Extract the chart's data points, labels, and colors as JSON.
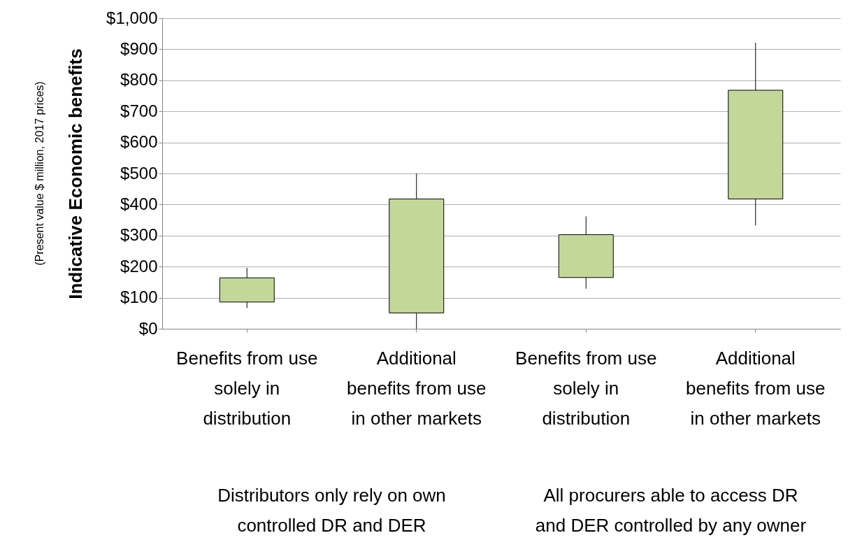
{
  "chart_data": {
    "type": "candlestick",
    "ylabel": "Indicative Economic benefits",
    "categories": [
      "Benefits from use solely in distribution",
      "Additional benefits from use in other markets",
      "Benefits from use solely in distribution",
      "Additional benefits from use in other markets"
    ],
    "ohlc": [
      [
        86,
        196,
        67,
        164
      ],
      [
        51,
        500,
        0,
        418
      ],
      [
        165,
        362,
        129,
        303
      ],
      [
        418,
        921,
        333,
        768
      ]
    ],
    "color": "#c4d79b",
    "ylim": [
      0,
      1000
    ],
    "yticks": [
      {
        "value": 0,
        "label": "$0"
      },
      {
        "value": 100,
        "label": "$100"
      },
      {
        "value": 200,
        "label": "$200"
      },
      {
        "value": 300,
        "label": "$300"
      },
      {
        "value": 400,
        "label": "$400"
      },
      {
        "value": 500,
        "label": "$500"
      },
      {
        "value": 600,
        "label": "$600"
      },
      {
        "value": 700,
        "label": "$700"
      },
      {
        "value": 800,
        "label": "$800"
      },
      {
        "value": 900,
        "label": "$900"
      },
      {
        "value": 1000,
        "label": "$1,000"
      }
    ],
    "grid": "y",
    "annotations": [
      "(Present value $ million, 2017 prices)",
      "Distributors only rely on own controlled DR and DER",
      "All procurers able to access DR and DER controlled by any owner"
    ]
  }
}
